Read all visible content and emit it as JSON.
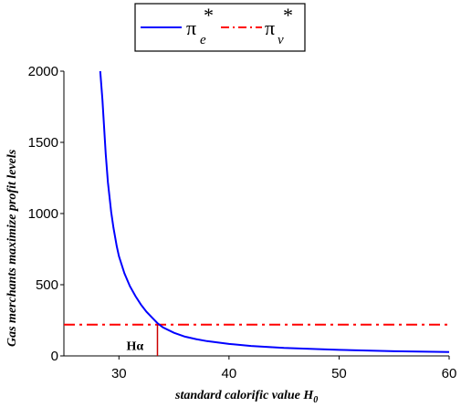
{
  "chart_data": {
    "type": "line",
    "title": "",
    "xlabel": "standard calorific value H",
    "xlabel_sub": "0",
    "ylabel": "Gas merchants maximize profit levels",
    "xlim": [
      25,
      60
    ],
    "ylim": [
      0,
      2000
    ],
    "xticks": [
      30,
      40,
      50,
      60
    ],
    "yticks": [
      0,
      500,
      1000,
      1500,
      2000
    ],
    "grid": false,
    "legend_position": "top-center",
    "series": [
      {
        "name": "π",
        "name_sub": "e",
        "name_sup": "*",
        "style": "solid",
        "color": "#0000ff",
        "x": [
          28.3,
          28.5,
          28.8,
          29.0,
          29.3,
          29.5,
          29.8,
          30.0,
          30.5,
          31.0,
          31.5,
          32.0,
          32.5,
          33.0,
          33.5,
          34.0,
          35.0,
          36.0,
          37.0,
          38.0,
          40.0,
          42.0,
          45.0,
          50.0,
          55.0,
          60.0
        ],
        "y": [
          2000,
          1800,
          1420,
          1220,
          1010,
          900,
          770,
          700,
          580,
          490,
          420,
          360,
          310,
          270,
          230,
          200,
          162,
          135,
          118,
          104,
          84,
          70,
          56,
          42,
          33,
          27
        ]
      },
      {
        "name": "π",
        "name_sub": "v",
        "name_sup": "*",
        "style": "dash-dot",
        "color": "#ff0000",
        "x": [
          25,
          60
        ],
        "y": [
          220,
          220
        ]
      }
    ],
    "annotations": [
      {
        "text": "Hα",
        "x": 33.5,
        "y_from": 0,
        "y_to": 220,
        "color": "#cc0000"
      }
    ]
  }
}
